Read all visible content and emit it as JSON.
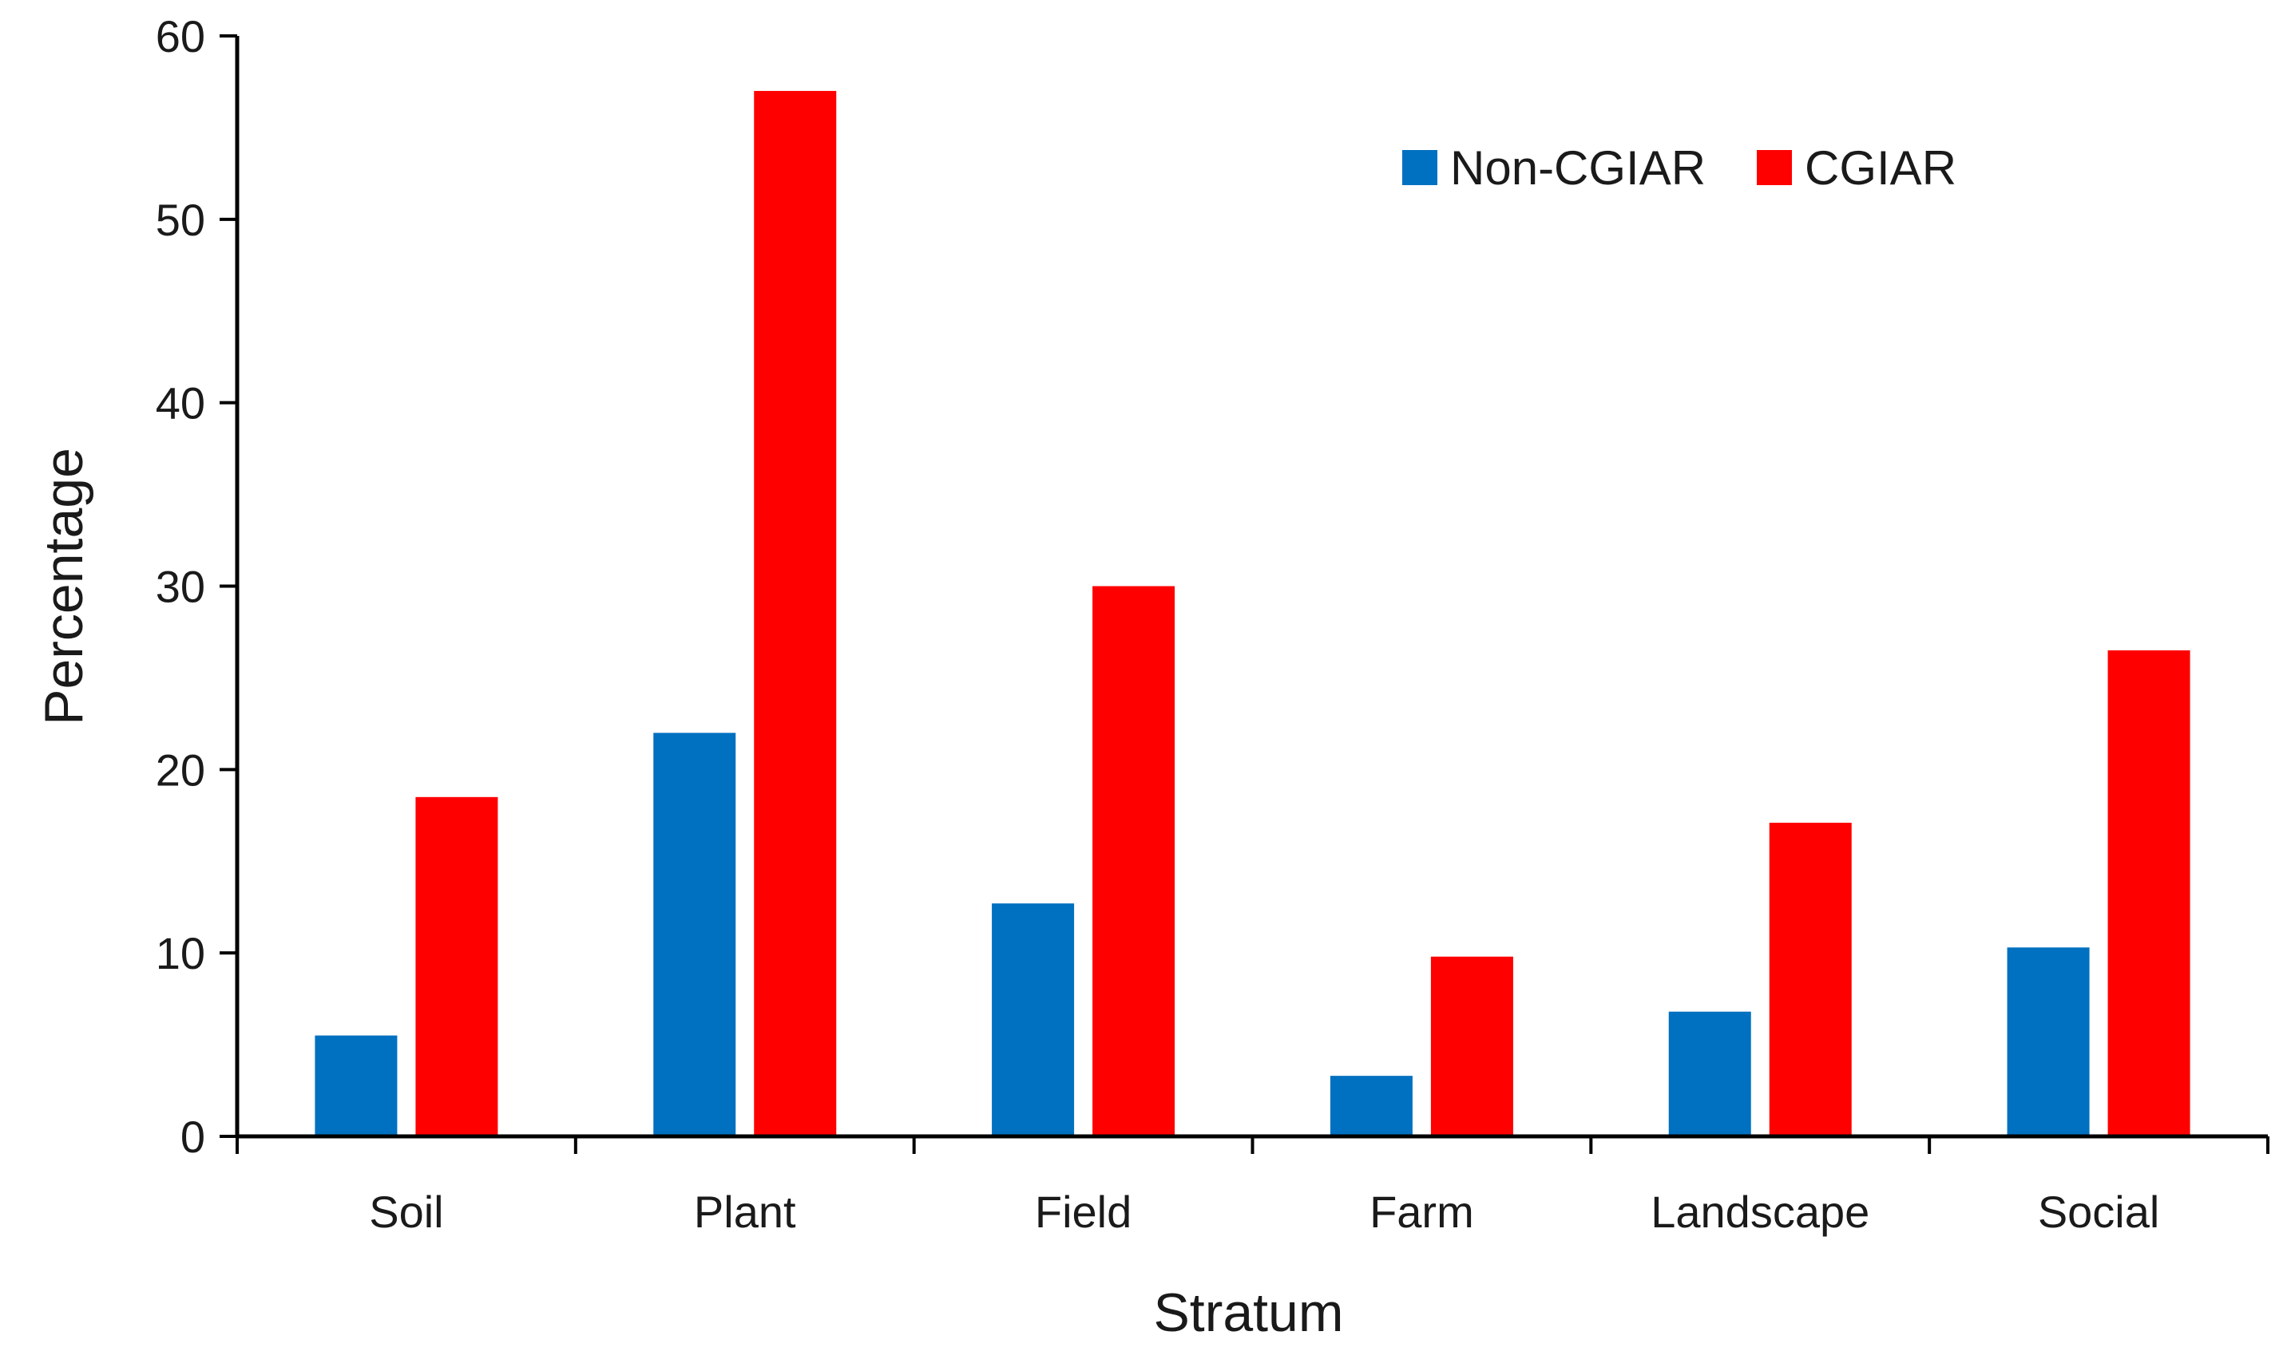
{
  "chart_data": {
    "type": "bar",
    "title": "",
    "xlabel": "Stratum",
    "ylabel": "Percentage",
    "ylim": [
      0,
      60
    ],
    "yticks": [
      0,
      10,
      20,
      30,
      40,
      50,
      60
    ],
    "categories": [
      "Soil",
      "Plant",
      "Field",
      "Farm",
      "Landscape",
      "Social"
    ],
    "series": [
      {
        "name": "Non-CGIAR",
        "color": "#0070C0",
        "values": [
          5.5,
          22,
          12.7,
          3.3,
          6.8,
          10.3
        ]
      },
      {
        "name": "CGIAR",
        "color": "#FF0000",
        "values": [
          18.5,
          57,
          30,
          9.8,
          17.1,
          26.5
        ]
      }
    ],
    "legend_position": "top-right",
    "grid": false
  }
}
